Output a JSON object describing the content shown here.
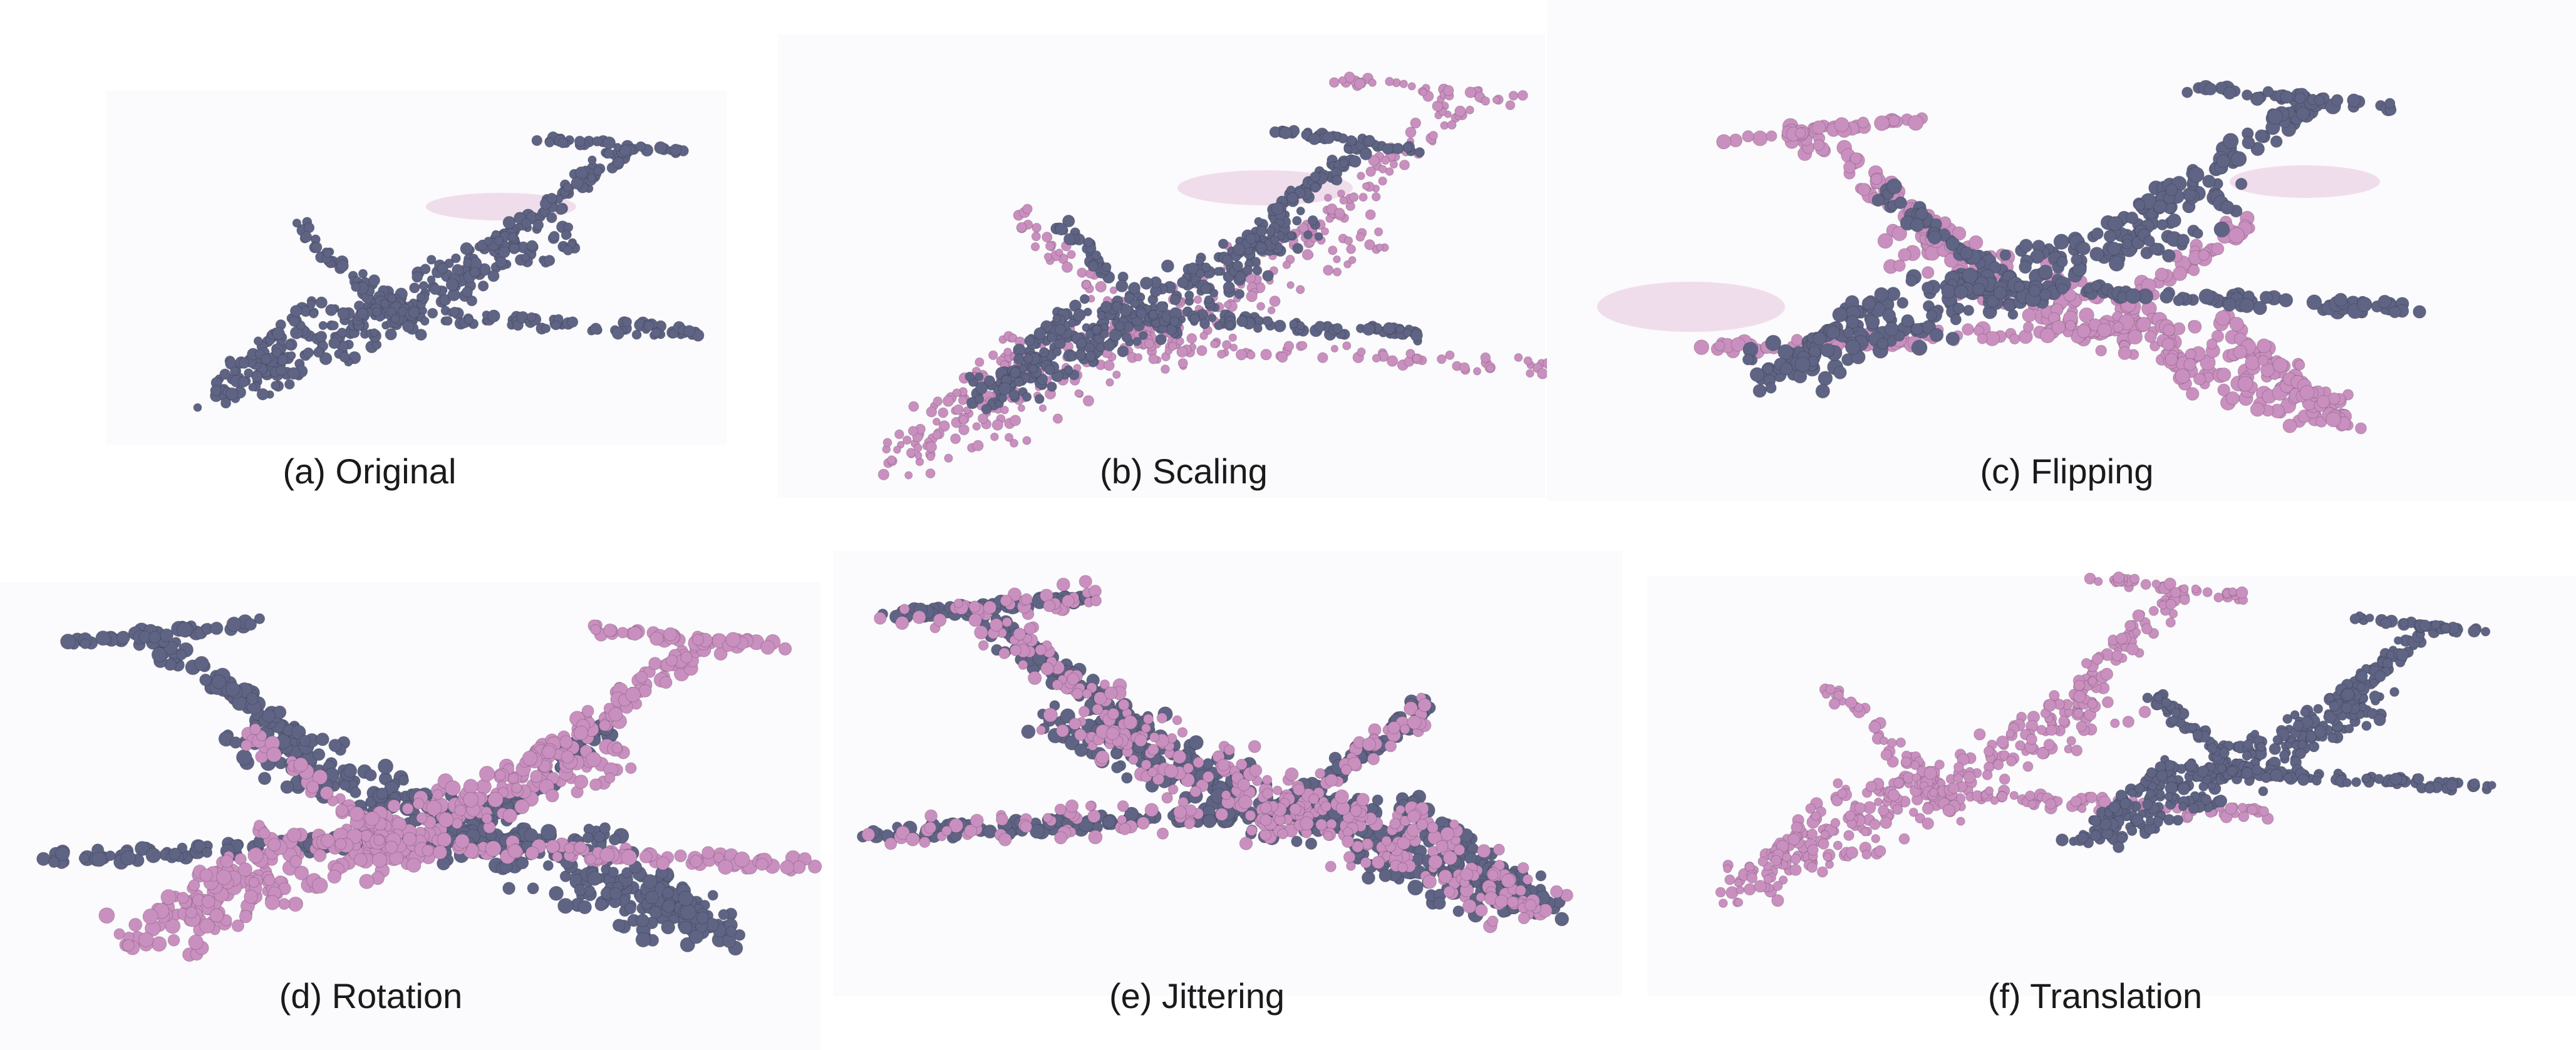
{
  "figure": {
    "colors": {
      "original_point": "#5f6484",
      "augmented_point": "#c98fbf",
      "motion_blur": "#e8c4dc",
      "background": "#fbfafc"
    },
    "panels": [
      {
        "id": "a",
        "caption": "(a) Original",
        "transform": "original"
      },
      {
        "id": "b",
        "caption": "(b) Scaling",
        "transform": "scaling"
      },
      {
        "id": "c",
        "caption": "(c) Flipping",
        "transform": "flipping"
      },
      {
        "id": "d",
        "caption": "(d) Rotation",
        "transform": "rotation"
      },
      {
        "id": "e",
        "caption": "(e) Jittering",
        "transform": "jittering"
      },
      {
        "id": "f",
        "caption": "(f) Translation",
        "transform": "translation"
      }
    ]
  }
}
